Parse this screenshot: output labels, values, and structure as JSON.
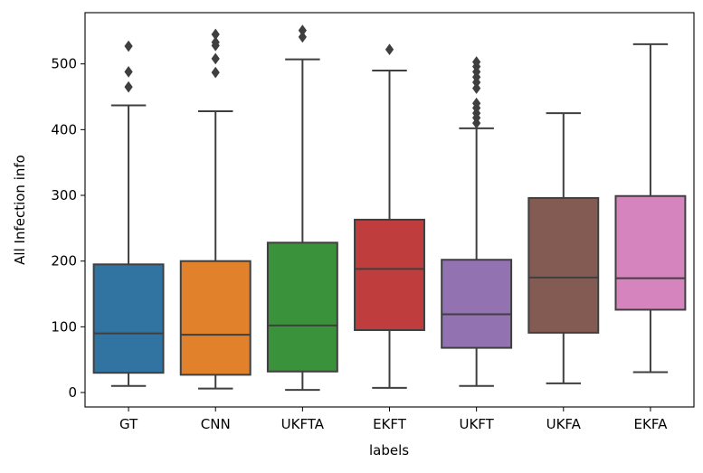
{
  "chart_data": {
    "type": "box",
    "title": "",
    "xlabel": "labels",
    "ylabel": "All Infection info",
    "ylim": [
      -22,
      578
    ],
    "yticks": [
      0,
      100,
      200,
      300,
      400,
      500
    ],
    "grid": false,
    "categories": [
      "GT",
      "CNN",
      "UKFTA",
      "EKFT",
      "UKFT",
      "UKFA",
      "EKFA"
    ],
    "boxes": [
      {
        "label": "GT",
        "color": "#3274a1",
        "whislo": 10,
        "q1": 30,
        "median": 90,
        "q3": 195,
        "whishi": 437,
        "fliers": [
          465,
          488,
          527
        ]
      },
      {
        "label": "CNN",
        "color": "#e1812c",
        "whislo": 6,
        "q1": 27,
        "median": 88,
        "q3": 200,
        "whishi": 428,
        "fliers": [
          487,
          508,
          528,
          533,
          545
        ]
      },
      {
        "label": "UKFTA",
        "color": "#3a923a",
        "whislo": 4,
        "q1": 32,
        "median": 102,
        "q3": 228,
        "whishi": 507,
        "fliers": [
          541,
          551
        ]
      },
      {
        "label": "EKFT",
        "color": "#c03d3e",
        "whislo": 7,
        "q1": 95,
        "median": 188,
        "q3": 263,
        "whishi": 490,
        "fliers": [
          522
        ]
      },
      {
        "label": "UKFT",
        "color": "#9372b2",
        "whislo": 10,
        "q1": 68,
        "median": 119,
        "q3": 202,
        "whishi": 402,
        "fliers": [
          410,
          418,
          425,
          433,
          440,
          463,
          472,
          480,
          488,
          496,
          503
        ]
      },
      {
        "label": "UKFA",
        "color": "#845b53",
        "whislo": 14,
        "q1": 91,
        "median": 175,
        "q3": 296,
        "whishi": 425,
        "fliers": []
      },
      {
        "label": "EKFA",
        "color": "#d684bd",
        "whislo": 31,
        "q1": 126,
        "median": 174,
        "q3": 299,
        "whishi": 530,
        "fliers": []
      }
    ]
  }
}
